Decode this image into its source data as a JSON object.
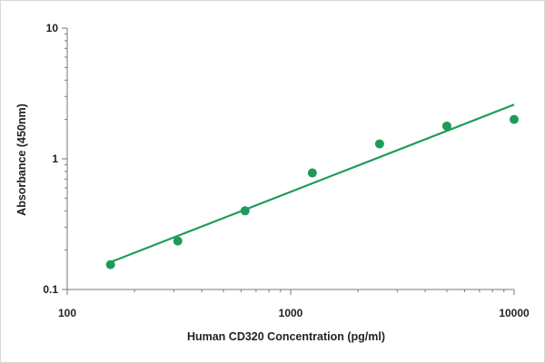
{
  "chart_data": {
    "type": "scatter",
    "title": "",
    "xlabel": "Human CD320 Concentration (pg/ml)",
    "ylabel": "Absorbance (450nm)",
    "x_scale": "log",
    "y_scale": "log",
    "xlim": [
      100,
      10000
    ],
    "ylim": [
      0.1,
      10
    ],
    "x_ticks": [
      "100",
      "1000",
      "10000"
    ],
    "y_ticks": [
      "10",
      "1",
      "0.1"
    ],
    "x_tick_values": [
      100,
      1000,
      10000
    ],
    "y_tick_values": [
      10,
      1,
      0.1
    ],
    "grid": false,
    "legend": "none",
    "marker_color": "#1e9b5a",
    "line_color": "#1e9b5a",
    "points": [
      {
        "x": 156.25,
        "y": 0.155
      },
      {
        "x": 312.5,
        "y": 0.235
      },
      {
        "x": 625,
        "y": 0.4
      },
      {
        "x": 1250,
        "y": 0.78
      },
      {
        "x": 2500,
        "y": 1.3
      },
      {
        "x": 5000,
        "y": 1.78
      },
      {
        "x": 10000,
        "y": 2.0
      }
    ],
    "trendline": {
      "type": "power",
      "points": [
        {
          "x": 156.25,
          "y": 0.162
        },
        {
          "x": 10000,
          "y": 2.6
        }
      ]
    }
  }
}
